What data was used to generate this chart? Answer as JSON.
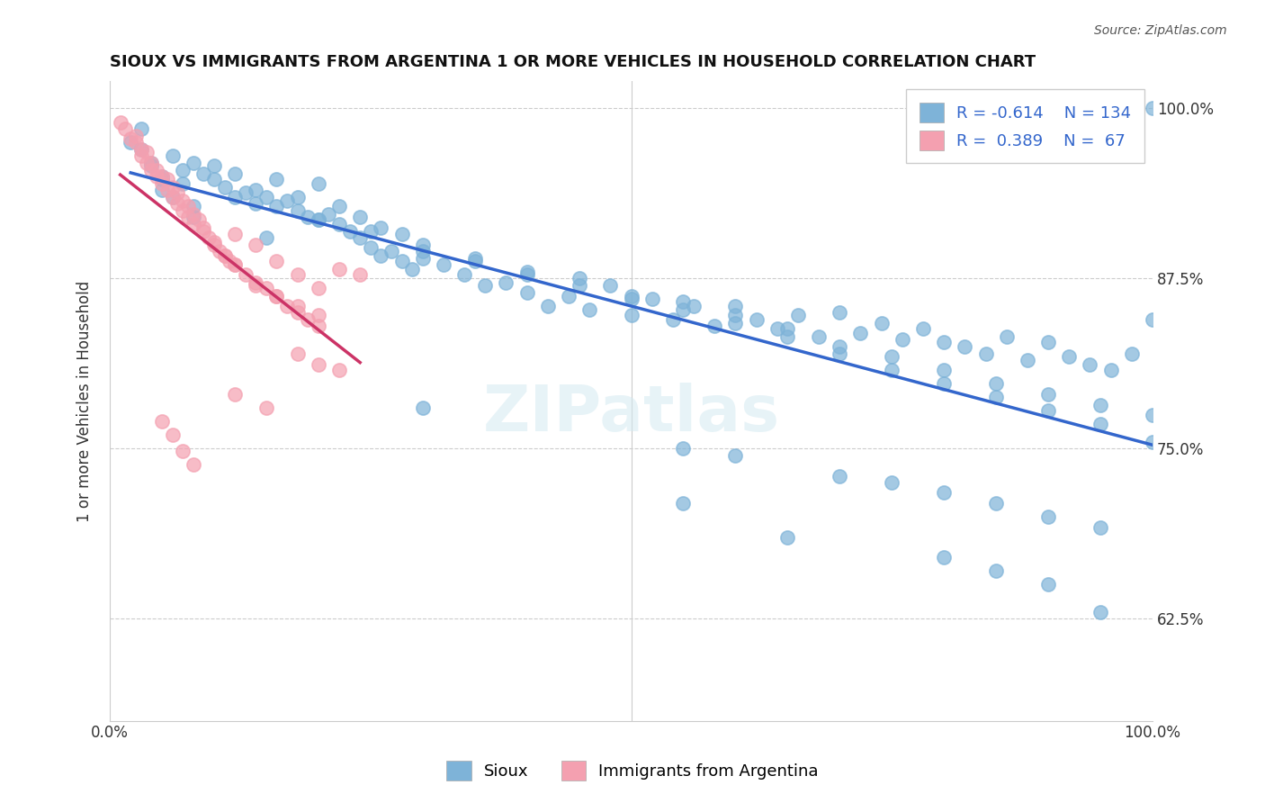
{
  "title": "SIOUX VS IMMIGRANTS FROM ARGENTINA 1 OR MORE VEHICLES IN HOUSEHOLD CORRELATION CHART",
  "source": "Source: ZipAtlas.com",
  "ylabel": "1 or more Vehicles in Household",
  "xlabel": "",
  "legend_label_blue": "Sioux",
  "legend_label_pink": "Immigrants from Argentina",
  "R_blue": -0.614,
  "N_blue": 134,
  "R_pink": 0.389,
  "N_pink": 67,
  "xlim": [
    0.0,
    1.0
  ],
  "ylim": [
    0.55,
    1.02
  ],
  "xticks": [
    0.0,
    0.2,
    0.4,
    0.5,
    0.6,
    0.8,
    1.0
  ],
  "xtick_labels": [
    "0.0%",
    "",
    "",
    "",
    "",
    "",
    "100.0%"
  ],
  "ytick_positions": [
    0.625,
    0.75,
    0.875,
    1.0
  ],
  "ytick_labels": [
    "62.5%",
    "75.0%",
    "87.5%",
    "100.0%"
  ],
  "color_blue": "#7EB3D8",
  "color_pink": "#F4A0B0",
  "trendline_blue": "#3366CC",
  "trendline_pink": "#CC3366",
  "blue_x": [
    0.02,
    0.03,
    0.04,
    0.05,
    0.06,
    0.04,
    0.05,
    0.07,
    0.08,
    0.09,
    0.1,
    0.11,
    0.12,
    0.13,
    0.14,
    0.15,
    0.16,
    0.17,
    0.18,
    0.19,
    0.2,
    0.21,
    0.22,
    0.23,
    0.24,
    0.25,
    0.26,
    0.27,
    0.28,
    0.29,
    0.3,
    0.32,
    0.34,
    0.36,
    0.38,
    0.4,
    0.42,
    0.44,
    0.46,
    0.48,
    0.5,
    0.52,
    0.54,
    0.56,
    0.58,
    0.6,
    0.62,
    0.64,
    0.66,
    0.68,
    0.7,
    0.72,
    0.74,
    0.76,
    0.78,
    0.8,
    0.82,
    0.84,
    0.86,
    0.88,
    0.9,
    0.92,
    0.94,
    0.96,
    0.98,
    1.0,
    0.05,
    0.06,
    0.07,
    0.08,
    0.1,
    0.12,
    0.14,
    0.16,
    0.18,
    0.2,
    0.22,
    0.24,
    0.26,
    0.28,
    0.3,
    0.35,
    0.4,
    0.45,
    0.5,
    0.55,
    0.6,
    0.65,
    0.7,
    0.75,
    0.8,
    0.85,
    0.9,
    0.95,
    1.0,
    0.03,
    0.08,
    0.15,
    0.2,
    0.25,
    0.3,
    0.35,
    0.4,
    0.45,
    0.5,
    0.55,
    0.6,
    0.65,
    0.7,
    0.75,
    0.8,
    0.85,
    0.9,
    0.95,
    1.0,
    0.3,
    0.55,
    0.6,
    0.7,
    0.75,
    0.8,
    0.85,
    0.9,
    0.95,
    1.0,
    0.55,
    0.65,
    0.8,
    0.85,
    0.9,
    0.95
  ],
  "blue_y": [
    0.975,
    0.97,
    0.96,
    0.95,
    0.965,
    0.958,
    0.948,
    0.955,
    0.96,
    0.952,
    0.948,
    0.942,
    0.935,
    0.938,
    0.93,
    0.935,
    0.928,
    0.932,
    0.925,
    0.92,
    0.918,
    0.922,
    0.915,
    0.91,
    0.905,
    0.898,
    0.892,
    0.895,
    0.888,
    0.882,
    0.89,
    0.885,
    0.878,
    0.87,
    0.872,
    0.865,
    0.855,
    0.862,
    0.852,
    0.87,
    0.848,
    0.86,
    0.845,
    0.855,
    0.84,
    0.855,
    0.845,
    0.838,
    0.848,
    0.832,
    0.85,
    0.835,
    0.842,
    0.83,
    0.838,
    0.828,
    0.825,
    0.82,
    0.832,
    0.815,
    0.828,
    0.818,
    0.812,
    0.808,
    0.82,
    1.0,
    0.94,
    0.935,
    0.945,
    0.928,
    0.958,
    0.952,
    0.94,
    0.948,
    0.935,
    0.945,
    0.928,
    0.92,
    0.912,
    0.908,
    0.895,
    0.888,
    0.878,
    0.875,
    0.862,
    0.858,
    0.848,
    0.838,
    0.825,
    0.818,
    0.808,
    0.798,
    0.79,
    0.782,
    0.775,
    0.985,
    0.92,
    0.905,
    0.918,
    0.91,
    0.9,
    0.89,
    0.88,
    0.87,
    0.86,
    0.852,
    0.842,
    0.832,
    0.82,
    0.808,
    0.798,
    0.788,
    0.778,
    0.768,
    0.755,
    0.78,
    0.75,
    0.745,
    0.73,
    0.725,
    0.718,
    0.71,
    0.7,
    0.692,
    0.845,
    0.71,
    0.685,
    0.67,
    0.66,
    0.65,
    0.63
  ],
  "pink_x": [
    0.01,
    0.015,
    0.02,
    0.025,
    0.03,
    0.035,
    0.04,
    0.045,
    0.05,
    0.055,
    0.06,
    0.065,
    0.07,
    0.075,
    0.08,
    0.085,
    0.09,
    0.095,
    0.1,
    0.105,
    0.11,
    0.115,
    0.12,
    0.13,
    0.14,
    0.15,
    0.16,
    0.17,
    0.18,
    0.19,
    0.2,
    0.22,
    0.24,
    0.025,
    0.03,
    0.035,
    0.04,
    0.045,
    0.05,
    0.055,
    0.06,
    0.065,
    0.07,
    0.075,
    0.08,
    0.09,
    0.1,
    0.11,
    0.12,
    0.14,
    0.16,
    0.18,
    0.2,
    0.12,
    0.14,
    0.16,
    0.18,
    0.2,
    0.18,
    0.2,
    0.22,
    0.12,
    0.15,
    0.05,
    0.06,
    0.07,
    0.08
  ],
  "pink_y": [
    0.99,
    0.985,
    0.978,
    0.975,
    0.965,
    0.96,
    0.955,
    0.95,
    0.945,
    0.94,
    0.935,
    0.93,
    0.925,
    0.92,
    0.915,
    0.918,
    0.91,
    0.905,
    0.9,
    0.895,
    0.892,
    0.888,
    0.885,
    0.878,
    0.872,
    0.868,
    0.862,
    0.855,
    0.85,
    0.845,
    0.84,
    0.882,
    0.878,
    0.98,
    0.97,
    0.968,
    0.96,
    0.955,
    0.95,
    0.948,
    0.942,
    0.938,
    0.932,
    0.928,
    0.922,
    0.912,
    0.902,
    0.892,
    0.885,
    0.87,
    0.862,
    0.855,
    0.848,
    0.908,
    0.9,
    0.888,
    0.878,
    0.868,
    0.82,
    0.812,
    0.808,
    0.79,
    0.78,
    0.77,
    0.76,
    0.748,
    0.738
  ]
}
